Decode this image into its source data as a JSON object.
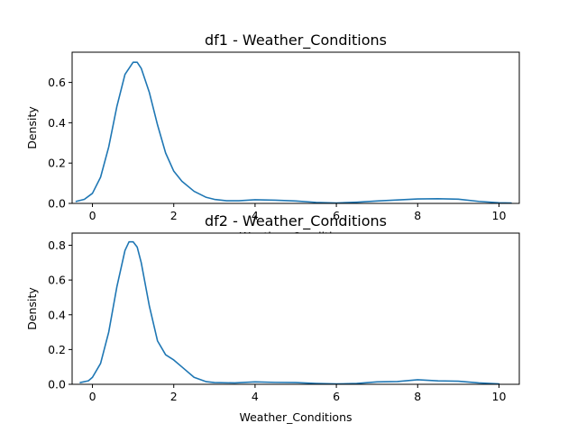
{
  "chart_data": [
    {
      "type": "line",
      "title": "df1 - Weather_Conditions",
      "xlabel": "Weather_Conditions",
      "ylabel": "Density",
      "xlim": [
        -0.5,
        10.5
      ],
      "ylim": [
        0,
        0.75
      ],
      "xticks": [
        0,
        2,
        4,
        6,
        8,
        10
      ],
      "yticks": [
        0.0,
        0.2,
        0.4,
        0.6
      ],
      "ytick_labels": [
        "0.0",
        "0.2",
        "0.4",
        "0.6"
      ],
      "grid": false,
      "color": "#1f77b4",
      "series": [
        {
          "x": [
            -0.4,
            -0.2,
            0.0,
            0.2,
            0.4,
            0.6,
            0.8,
            1.0,
            1.1,
            1.2,
            1.4,
            1.6,
            1.8,
            2.0,
            2.2,
            2.5,
            2.8,
            3.0,
            3.3,
            3.6,
            4.0,
            4.5,
            5.0,
            5.5,
            6.0,
            6.5,
            7.0,
            7.5,
            8.0,
            8.5,
            9.0,
            9.5,
            10.0,
            10.3
          ],
          "y": [
            0.01,
            0.02,
            0.05,
            0.13,
            0.28,
            0.48,
            0.64,
            0.7,
            0.7,
            0.67,
            0.55,
            0.39,
            0.25,
            0.16,
            0.11,
            0.06,
            0.03,
            0.02,
            0.013,
            0.013,
            0.018,
            0.016,
            0.012,
            0.005,
            0.002,
            0.006,
            0.012,
            0.017,
            0.022,
            0.023,
            0.021,
            0.01,
            0.003,
            0.002
          ]
        }
      ]
    },
    {
      "type": "line",
      "title": "df2 - Weather_Conditions",
      "xlabel": "Weather_Conditions",
      "ylabel": "Density",
      "xlim": [
        -0.5,
        10.5
      ],
      "ylim": [
        0,
        0.87
      ],
      "xticks": [
        0,
        2,
        4,
        6,
        8,
        10
      ],
      "yticks": [
        0.0,
        0.2,
        0.4,
        0.6,
        0.8
      ],
      "ytick_labels": [
        "0.0",
        "0.2",
        "0.4",
        "0.6",
        "0.8"
      ],
      "grid": false,
      "color": "#1f77b4",
      "series": [
        {
          "x": [
            -0.3,
            -0.1,
            0.0,
            0.2,
            0.4,
            0.6,
            0.8,
            0.9,
            1.0,
            1.1,
            1.2,
            1.4,
            1.6,
            1.8,
            2.0,
            2.2,
            2.5,
            2.8,
            3.0,
            3.5,
            4.0,
            4.5,
            5.0,
            5.5,
            6.0,
            6.5,
            7.0,
            7.5,
            8.0,
            8.5,
            9.0,
            9.5,
            10.0
          ],
          "y": [
            0.01,
            0.02,
            0.04,
            0.12,
            0.3,
            0.56,
            0.77,
            0.82,
            0.82,
            0.79,
            0.7,
            0.45,
            0.25,
            0.17,
            0.14,
            0.1,
            0.04,
            0.015,
            0.01,
            0.008,
            0.014,
            0.011,
            0.01,
            0.005,
            0.002,
            0.005,
            0.014,
            0.016,
            0.026,
            0.02,
            0.018,
            0.008,
            0.002
          ]
        }
      ]
    }
  ]
}
